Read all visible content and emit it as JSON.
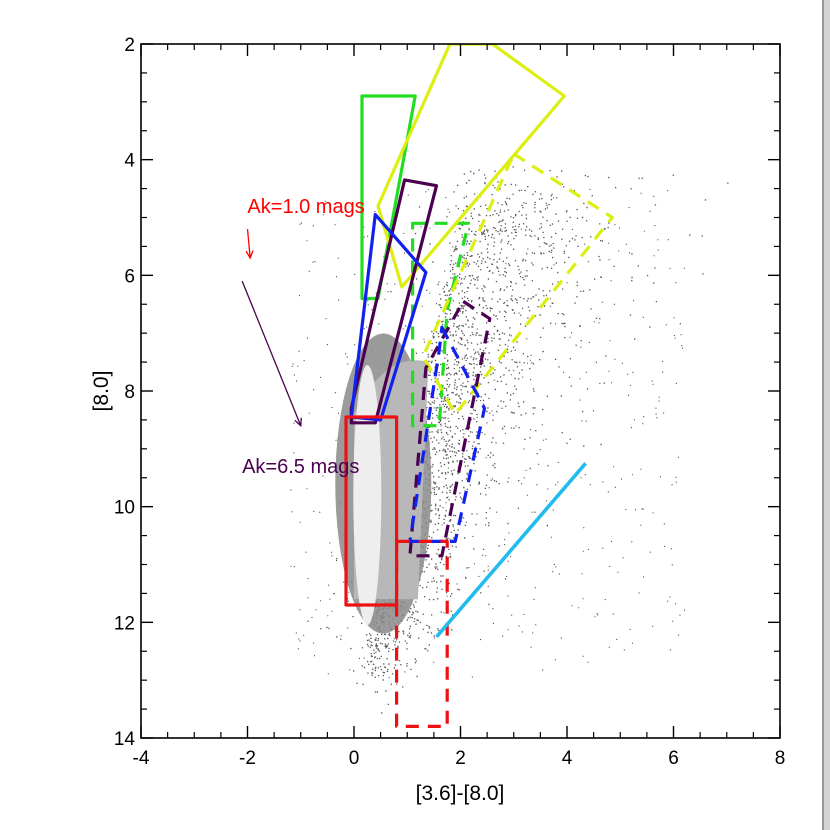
{
  "chart_data": {
    "type": "scatter",
    "title": "",
    "xlabel": "[3.6]-[8.0]",
    "ylabel": "[8.0]",
    "xlim": [
      -4,
      8
    ],
    "ylim": [
      14,
      2
    ],
    "x_ticks": [
      "-4",
      "-2",
      "0",
      "2",
      "4",
      "6",
      "8"
    ],
    "y_ticks": [
      "2",
      "4",
      "6",
      "8",
      "10",
      "12",
      "14"
    ],
    "x_tick_values": [
      -4,
      -2,
      0,
      2,
      4,
      6,
      8
    ],
    "y_tick_values": [
      2,
      4,
      6,
      8,
      10,
      12,
      14
    ],
    "background_cloud": {
      "description_points": "dense grey scatter of field stars",
      "color": "#555555",
      "core_color": "#e8e8e8"
    },
    "annotations": [
      {
        "text": "Ak=1.0 mags",
        "color": "#ff0000",
        "anchor": [
          -0.9,
          4.8
        ],
        "arrow_from": [
          -2.0,
          5.2
        ],
        "arrow_to": [
          -1.95,
          5.7
        ]
      },
      {
        "text": "Ak=6.5 mags",
        "color": "#4b0050",
        "anchor": [
          -1.0,
          9.3
        ],
        "arrow_from": [
          -2.1,
          6.1
        ],
        "arrow_to": [
          -1.0,
          8.6
        ]
      }
    ],
    "regions": [
      {
        "name": "green-solid",
        "color": "#22dd22",
        "dash": false,
        "points": [
          [
            0.15,
            2.9
          ],
          [
            1.15,
            2.9
          ],
          [
            0.45,
            6.4
          ],
          [
            0.15,
            6.4
          ]
        ]
      },
      {
        "name": "green-dashed",
        "color": "#22dd22",
        "dash": true,
        "points": [
          [
            1.1,
            5.1
          ],
          [
            2.15,
            5.1
          ],
          [
            1.75,
            6.6
          ],
          [
            1.6,
            8.6
          ],
          [
            1.1,
            8.6
          ]
        ]
      },
      {
        "name": "yellow-solid",
        "color": "#ddee11",
        "dash": false,
        "points": [
          [
            1.8,
            2.0
          ],
          [
            2.6,
            2.0
          ],
          [
            3.95,
            2.9
          ],
          [
            0.9,
            6.2
          ],
          [
            0.45,
            4.8
          ]
        ]
      },
      {
        "name": "yellow-dashed",
        "color": "#ddee11",
        "dash": true,
        "points": [
          [
            3.0,
            3.9
          ],
          [
            4.85,
            5.0
          ],
          [
            1.9,
            8.4
          ],
          [
            1.3,
            7.4
          ]
        ]
      },
      {
        "name": "purple-solid",
        "color": "#4b0050",
        "dash": false,
        "points": [
          [
            0.95,
            4.35
          ],
          [
            1.55,
            4.45
          ],
          [
            0.4,
            8.55
          ],
          [
            -0.05,
            8.55
          ],
          [
            -0.05,
            8.3
          ]
        ]
      },
      {
        "name": "purple-dashed",
        "color": "#4b0050",
        "dash": true,
        "points": [
          [
            2.05,
            6.45
          ],
          [
            2.55,
            6.75
          ],
          [
            1.65,
            10.85
          ],
          [
            1.05,
            10.85
          ],
          [
            1.35,
            7.6
          ]
        ]
      },
      {
        "name": "blue-solid",
        "color": "#1122ee",
        "dash": false,
        "points": [
          [
            0.4,
            4.95
          ],
          [
            1.35,
            5.95
          ],
          [
            0.5,
            8.5
          ],
          [
            -0.05,
            8.45
          ]
        ]
      },
      {
        "name": "blue-dashed",
        "color": "#1122ee",
        "dash": true,
        "points": [
          [
            1.65,
            6.9
          ],
          [
            2.45,
            8.3
          ],
          [
            1.9,
            10.6
          ],
          [
            1.05,
            10.6
          ],
          [
            1.6,
            7.3
          ]
        ]
      },
      {
        "name": "red-solid",
        "color": "#ee1111",
        "dash": false,
        "points": [
          [
            -0.15,
            8.45
          ],
          [
            0.8,
            8.45
          ],
          [
            0.8,
            11.7
          ],
          [
            -0.15,
            11.7
          ]
        ]
      },
      {
        "name": "red-dashed",
        "color": "#ee1111",
        "dash": true,
        "points": [
          [
            0.8,
            10.6
          ],
          [
            1.75,
            10.6
          ],
          [
            1.75,
            13.8
          ],
          [
            0.8,
            13.8
          ]
        ]
      }
    ],
    "line": {
      "name": "cyan-line",
      "color": "#22bbee",
      "x": [
        1.55,
        4.35
      ],
      "y": [
        12.25,
        9.25
      ]
    }
  }
}
